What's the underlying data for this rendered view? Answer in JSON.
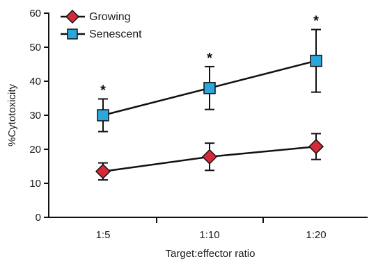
{
  "chart_data": {
    "type": "line",
    "title": "",
    "xlabel": "Target:effector ratio",
    "ylabel": "%Cytotoxicity",
    "categories": [
      "1:5",
      "1:10",
      "1:20"
    ],
    "ylim": [
      0,
      60
    ],
    "yticks": [
      0,
      10,
      20,
      30,
      40,
      50,
      60
    ],
    "grid": false,
    "legend_position": "top-left",
    "series": [
      {
        "name": "Growing",
        "marker": "diamond",
        "marker_color": "#d42a3a",
        "values": [
          13.5,
          17.8,
          20.8
        ],
        "error": [
          2.5,
          4.0,
          3.8
        ]
      },
      {
        "name": "Senescent",
        "marker": "square",
        "marker_color": "#2aa7dd",
        "values": [
          30.0,
          38.0,
          46.0
        ],
        "error": [
          4.8,
          6.3,
          9.2
        ]
      }
    ],
    "annotations": [
      {
        "category": "1:5",
        "text": "*"
      },
      {
        "category": "1:10",
        "text": "*"
      },
      {
        "category": "1:20",
        "text": "*"
      }
    ]
  }
}
